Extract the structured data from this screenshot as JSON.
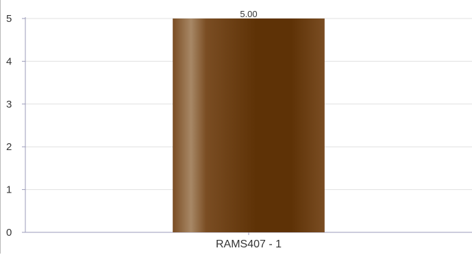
{
  "chart_data": {
    "type": "bar",
    "categories": [
      "RAMS407 - 1"
    ],
    "values": [
      5.0
    ],
    "value_labels": [
      "5.00"
    ],
    "title": "",
    "xlabel": "",
    "ylabel": "",
    "ylim": [
      0,
      5
    ],
    "yticks": [
      "0",
      "1",
      "2",
      "3",
      "4",
      "5"
    ],
    "grid": true,
    "legend": "none",
    "colors": {
      "bar_dark": "#5e3206",
      "bar_light": "#a88866",
      "bar_mid": "#7a4d23",
      "grid": "#e0e0e0",
      "axis": "#9a9ab8",
      "text": "#333333"
    }
  }
}
